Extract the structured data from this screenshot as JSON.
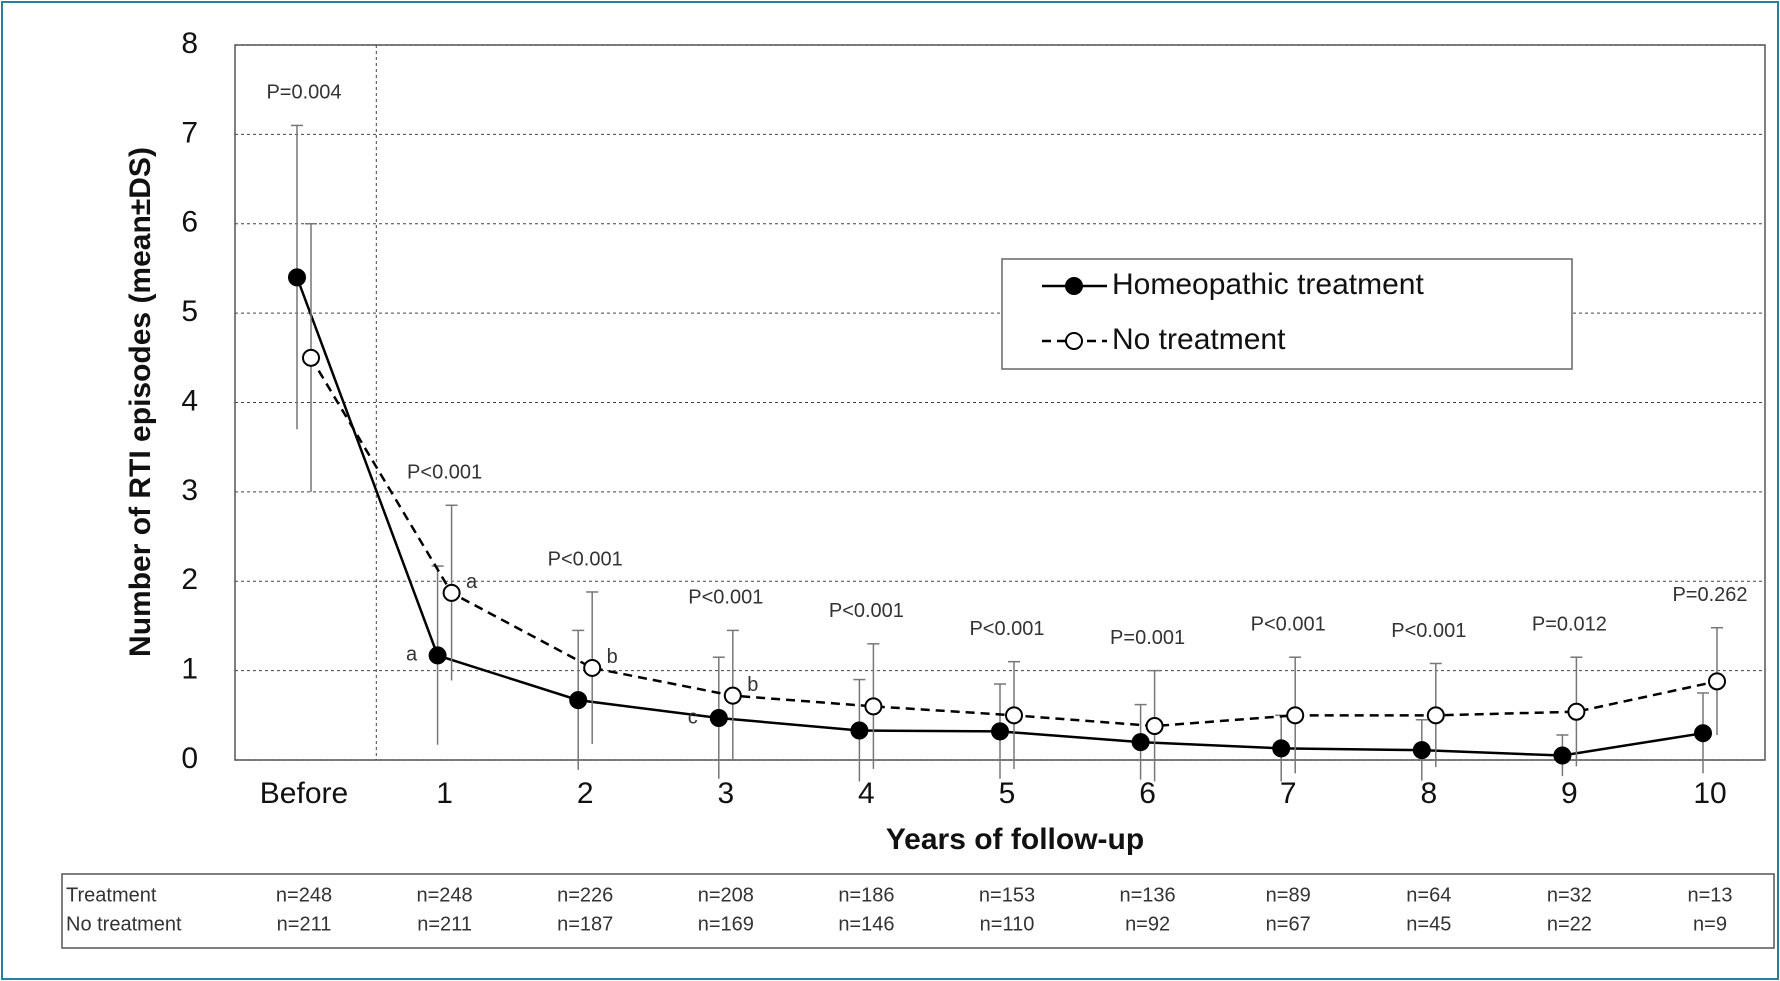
{
  "chart_data": {
    "type": "line",
    "x_label": "Years of follow-up",
    "y_label": "Number of RTI episodes (mean±DS)",
    "categories": [
      "Before",
      "1",
      "2",
      "3",
      "4",
      "5",
      "6",
      "7",
      "8",
      "9",
      "10"
    ],
    "ylim": [
      0,
      8
    ],
    "yticks": [
      0,
      1,
      2,
      3,
      4,
      5,
      6,
      7,
      8
    ],
    "grid": true,
    "series": [
      {
        "name": "Homeopathic treatment",
        "color": "#000000",
        "marker": "filled",
        "dashed": false,
        "values": [
          5.4,
          1.17,
          0.67,
          0.47,
          0.33,
          0.32,
          0.2,
          0.13,
          0.11,
          0.05,
          0.3
        ],
        "errors": [
          1.7,
          1.0,
          0.78,
          0.68,
          0.57,
          0.53,
          0.42,
          0.37,
          0.34,
          0.23,
          0.45
        ],
        "point_labels": [
          null,
          "a",
          null,
          "c",
          null,
          null,
          null,
          null,
          null,
          null,
          null
        ]
      },
      {
        "name": "No treatment",
        "color": "#000000",
        "marker": "open",
        "dashed": true,
        "values": [
          4.5,
          1.87,
          1.03,
          0.72,
          0.6,
          0.5,
          0.38,
          0.5,
          0.5,
          0.54,
          0.88
        ],
        "errors": [
          1.5,
          0.98,
          0.85,
          0.73,
          0.7,
          0.6,
          0.62,
          0.65,
          0.58,
          0.61,
          0.6
        ],
        "point_labels": [
          null,
          "a",
          "b",
          "b",
          null,
          null,
          null,
          null,
          null,
          null,
          null
        ]
      }
    ],
    "p_values": [
      "P=0.004",
      "P<0.001",
      "P<0.001",
      "P<0.001",
      "P<0.001",
      "P<0.001",
      "P=0.001",
      "P<0.001",
      "P<0.001",
      "P=0.012",
      "P=0.262"
    ],
    "sample_sizes": [
      {
        "label": "Treatment",
        "values": [
          "n=248",
          "n=248",
          "n=226",
          "n=208",
          "n=186",
          "n=153",
          "n=136",
          "n=89",
          "n=64",
          "n=32",
          "n=13"
        ]
      },
      {
        "label": "No treatment",
        "values": [
          "n=211",
          "n=211",
          "n=187",
          "n=169",
          "n=146",
          "n=110",
          "n=92",
          "n=67",
          "n=45",
          "n=22",
          "n=9"
        ]
      }
    ]
  }
}
